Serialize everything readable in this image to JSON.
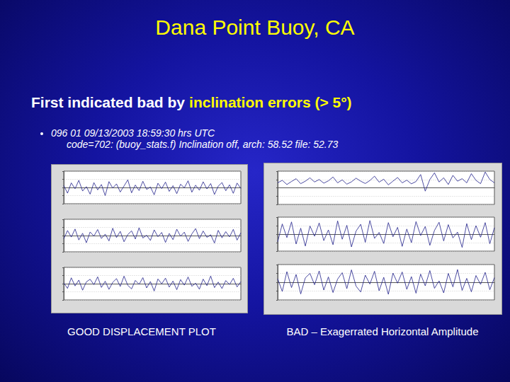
{
  "slide": {
    "title": "Dana Point Buoy, CA",
    "subtitle": [
      {
        "text": "First indicated bad by",
        "color": "#ffffff"
      },
      {
        "text": "inclination errors (> 5°)",
        "color": "#ffff00"
      }
    ],
    "bullet": [
      "096 01 09/13/2003 18:59:30 hrs UTC",
      "code=702: (buoy_stats.f) Inclination off, arch: 58.52 file: 52.73"
    ],
    "captions": [
      "GOOD DISPLACEMENT PLOT",
      "BAD – Exagerrated Horizontal Amplitude"
    ]
  },
  "chart_data": [
    {
      "type": "line",
      "color": "#1f1f8a",
      "ylim": [
        -100,
        100
      ],
      "yticks": [
        -100,
        -50,
        0,
        50,
        100
      ],
      "grid": true,
      "tick_labels": false,
      "values": [
        12,
        -35,
        28,
        -8,
        44,
        -22,
        5,
        -41,
        30,
        -15,
        18,
        -50,
        36,
        -4,
        22,
        -28,
        9,
        47,
        -33,
        15,
        -19,
        38,
        -12,
        3,
        -45,
        26,
        -7,
        33,
        -24,
        11,
        -38,
        20,
        -2,
        41,
        -29,
        14,
        -17,
        35,
        -9,
        24,
        -43,
        8,
        30,
        -20,
        16,
        -36,
        27,
        -6
      ]
    },
    {
      "type": "line",
      "color": "#1f1f8a",
      "ylim": [
        -100,
        100
      ],
      "yticks": [
        -100,
        -50,
        0,
        50,
        100
      ],
      "grid": true,
      "tick_labels": false,
      "values": [
        -20,
        31,
        -9,
        40,
        -27,
        14,
        -44,
        22,
        -3,
        37,
        -18,
        9,
        -33,
        45,
        -12,
        26,
        -38,
        6,
        29,
        -21,
        48,
        -15,
        2,
        -30,
        35,
        -7,
        19,
        -42,
        13,
        -25,
        39,
        -4,
        21,
        -36,
        10,
        43,
        -19,
        28,
        -11,
        5,
        -46,
        32,
        -14,
        24,
        -8,
        38,
        -28,
        17
      ]
    },
    {
      "type": "line",
      "color": "#1f1f8a",
      "ylim": [
        -100,
        100
      ],
      "yticks": [
        -100,
        -50,
        0,
        50,
        100
      ],
      "grid": true,
      "tick_labels": false,
      "values": [
        5,
        -29,
        36,
        -14,
        22,
        -40,
        11,
        27,
        -6,
        42,
        -23,
        15,
        -35,
        8,
        31,
        -17,
        46,
        -10,
        -32,
        20,
        -4,
        37,
        -26,
        13,
        -45,
        29,
        -1,
        34,
        -21,
        16,
        -37,
        25,
        -9,
        41,
        -16,
        3,
        -34,
        28,
        -12,
        47,
        -24,
        10,
        -30,
        19,
        -5,
        33,
        -20,
        12
      ]
    },
    {
      "type": "line",
      "color": "#1f1f8a",
      "ylim": [
        -100,
        100
      ],
      "yticks": [
        -100,
        -50,
        0,
        50,
        100
      ],
      "grid": true,
      "tick_labels": false,
      "values": [
        30,
        45,
        20,
        38,
        55,
        25,
        40,
        60,
        35,
        50,
        28,
        42,
        65,
        30,
        48,
        22,
        36,
        58,
        40,
        26,
        44,
        70,
        34,
        52,
        18,
        40,
        62,
        30,
        46,
        24,
        38,
        80,
        -20,
        50,
        90,
        35,
        60,
        20,
        75,
        40,
        55,
        30,
        85,
        45,
        25,
        95,
        50,
        30
      ]
    },
    {
      "type": "line",
      "color": "#1f1f8a",
      "ylim": [
        -100,
        100
      ],
      "yticks": [
        -100,
        -50,
        0,
        50,
        100
      ],
      "grid": true,
      "tick_labels": false,
      "values": [
        -45,
        60,
        -20,
        72,
        -58,
        35,
        -70,
        48,
        -12,
        66,
        -38,
        25,
        -62,
        78,
        -30,
        52,
        -75,
        18,
        58,
        -48,
        80,
        -25,
        10,
        -55,
        68,
        -15,
        40,
        -72,
        30,
        -50,
        74,
        -8,
        45,
        -66,
        22,
        70,
        -40,
        56,
        -22,
        12,
        -78,
        62,
        -32,
        50,
        -18,
        68,
        -56,
        38
      ]
    },
    {
      "type": "line",
      "color": "#1f1f8a",
      "ylim": [
        -100,
        100
      ],
      "yticks": [
        -100,
        -50,
        0,
        50,
        100
      ],
      "grid": true,
      "tick_labels": false,
      "values": [
        20,
        -52,
        60,
        -30,
        44,
        -66,
        25,
        50,
        -14,
        64,
        -44,
        30,
        -58,
        18,
        54,
        -36,
        70,
        -22,
        -55,
        40,
        -10,
        62,
        -48,
        28,
        -68,
        52,
        -5,
        58,
        -40,
        32,
        -62,
        46,
        -20,
        66,
        -34,
        8,
        -60,
        50,
        -26,
        72,
        -46,
        22,
        -54,
        38,
        -12,
        56,
        -42,
        26
      ]
    }
  ]
}
